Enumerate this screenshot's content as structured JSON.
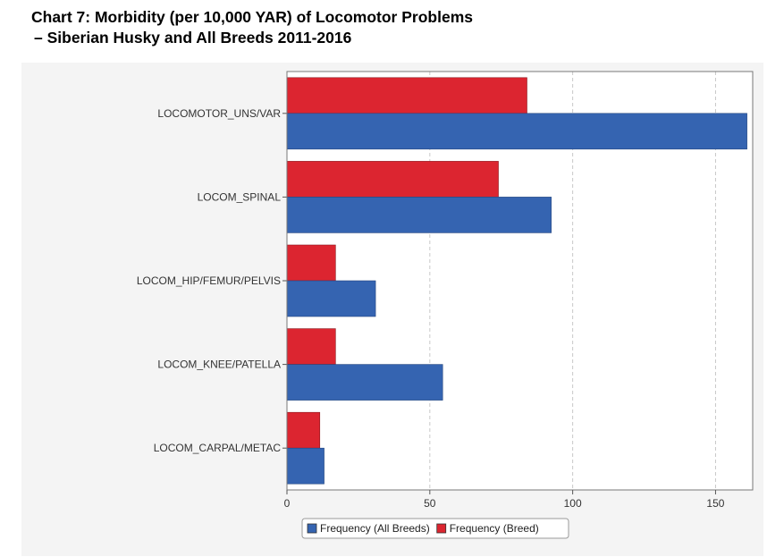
{
  "title_line1": "Chart 7: Morbidity (per 10,000 YAR) of Locomotor Problems",
  "title_line2": "– Siberian Husky and All Breeds 2011-2016",
  "chart_data": {
    "type": "bar",
    "orientation": "horizontal",
    "title": "Chart 7: Morbidity (per 10,000 YAR) of Locomotor Problems – Siberian Husky and All Breeds 2011-2016",
    "categories": [
      "LOCOMOTOR_UNS/VAR",
      "LOCOM_SPINAL",
      "LOCOM_HIP/FEMUR/PELVIS",
      "LOCOM_KNEE/PATELLA",
      "LOCOM_CARPAL/METAC"
    ],
    "series": [
      {
        "name": "Frequency (Breed)",
        "color": "#dc2530",
        "values": [
          84,
          74,
          17,
          17,
          11.5
        ]
      },
      {
        "name": "Frequency (All Breeds)",
        "color": "#3564b1",
        "values": [
          161,
          92.5,
          31,
          54.5,
          13
        ]
      }
    ],
    "xlim": [
      0,
      163
    ],
    "xticks": [
      0,
      50,
      100,
      150
    ],
    "xlabel": "",
    "ylabel": "",
    "grid": "vertical dashed",
    "legend": {
      "position": "bottom",
      "items": [
        {
          "label": "Frequency (All Breeds)",
          "color": "#3564b1"
        },
        {
          "label": "Frequency (Breed)",
          "color": "#dc2530"
        }
      ]
    }
  }
}
